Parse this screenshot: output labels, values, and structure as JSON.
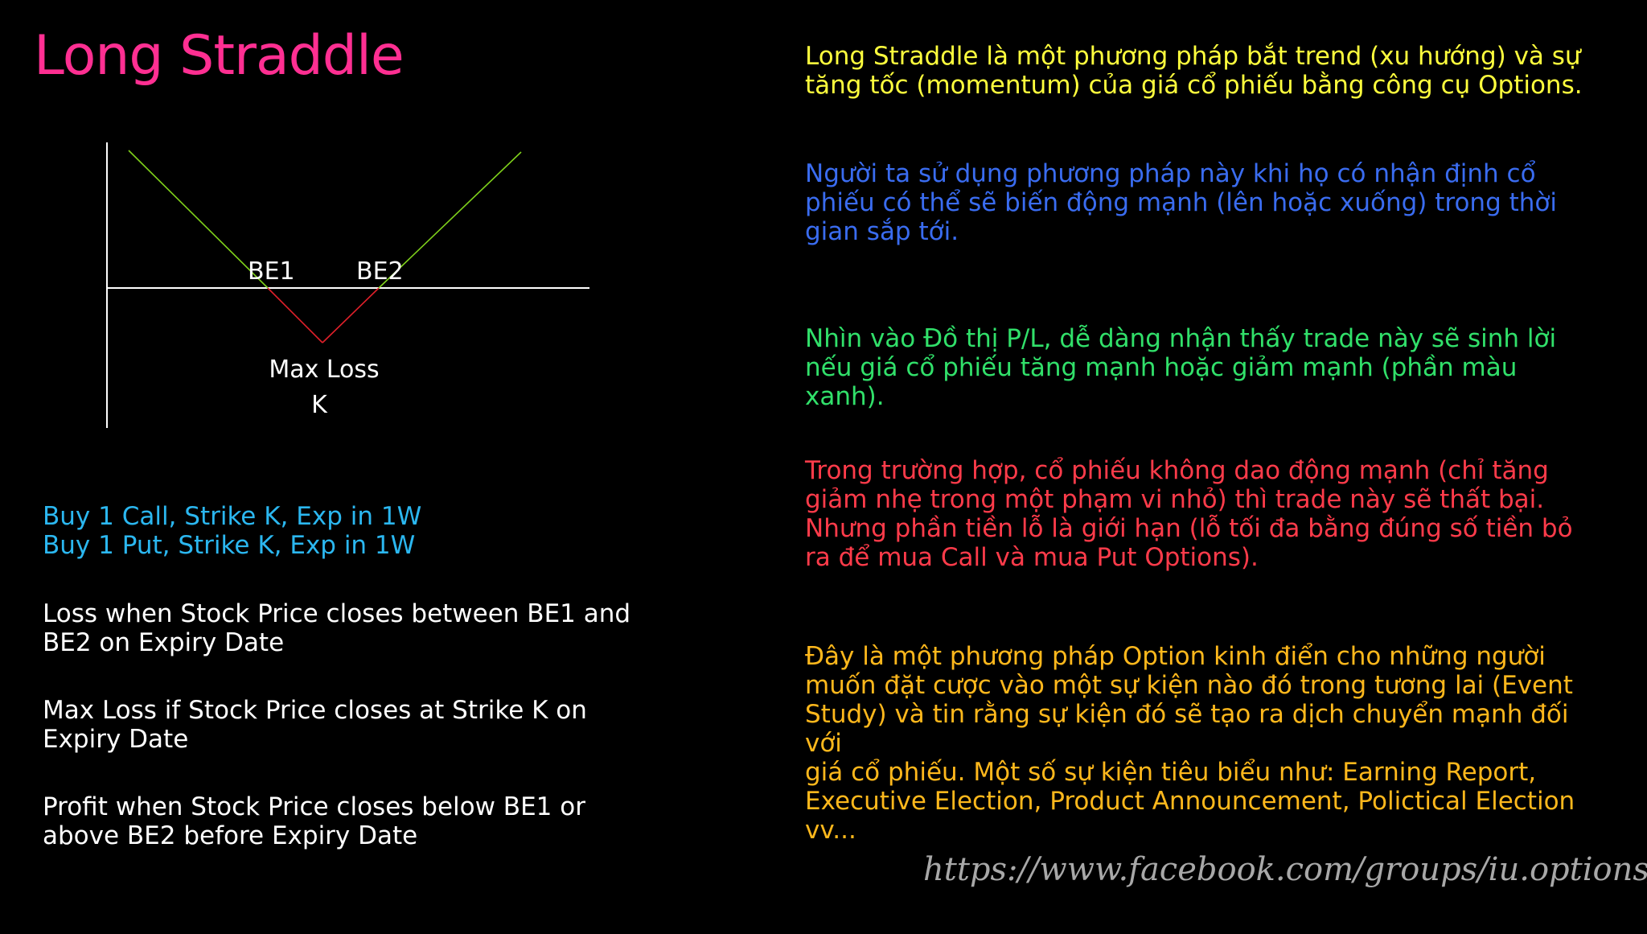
{
  "title": "Long Straddle",
  "colors": {
    "title": "#ff2f92",
    "profit_line": "#7fd11b",
    "loss_line": "#e0202a",
    "axis": "#ffffff",
    "left_blue": "#2bb7f0",
    "para1": "#ffff3d",
    "para2": "#3a6cf0",
    "para3": "#31e06a",
    "para4": "#ff3b4a",
    "para5": "#ffb81c",
    "footer": "#a8a8a8"
  },
  "diagram": {
    "be1": "BE1",
    "be2": "BE2",
    "max_loss": "Max Loss",
    "k": "K"
  },
  "left": {
    "buy_call": "Buy 1 Call, Strike K, Exp in 1W",
    "buy_put": "Buy 1 Put, Strike K, Exp in 1W",
    "loss_line1": "Loss when Stock Price closes between BE1 and",
    "loss_line2": "BE2 on Expiry Date",
    "maxloss_line1": "Max Loss if Stock Price closes at Strike K on",
    "maxloss_line2": "Expiry Date",
    "profit_line1": "Profit when Stock Price closes below BE1 or",
    "profit_line2": "above BE2 before Expiry Date"
  },
  "right": {
    "p1": [
      "Long Straddle là một phương pháp bắt trend (xu hướng)  và sự",
      "tăng tốc (momentum) của giá cổ phiếu bằng công cụ Options."
    ],
    "p2": [
      "Người ta sử dụng phương pháp này khi họ có nhận định cổ",
      "phiếu có thể sẽ biến động mạnh (lên hoặc xuống) trong thời",
      "gian sắp tới."
    ],
    "p3": [
      "Nhìn vào Đồ thị P/L, dễ dàng nhận thấy trade này sẽ sinh lời",
      "nếu giá cổ phiếu tăng mạnh hoặc giảm mạnh (phần màu xanh)."
    ],
    "p4": [
      "Trong trường hợp, cổ phiếu không dao động mạnh (chỉ tăng",
      "giảm nhẹ trong một phạm vi nhỏ) thì trade này sẽ thất bại.",
      "Nhưng phần tiền lỗ là giới hạn (lỗ tối đa bằng đúng số tiền bỏ",
      "ra để mua Call và mua Put Options)."
    ],
    "p5": [
      "Đây là một phương pháp Option kinh điển cho những người",
      "muốn đặt cược vào một sự kiện nào đó trong tương lai (Event",
      "Study) và tin rằng sự kiện đó sẽ tạo ra dịch chuyển mạnh đối với",
      "giá cổ phiếu. Một số sự kiện tiêu biểu như: Earning Report,",
      "Executive Election, Product Announcement, Polictical Election",
      "vv..."
    ]
  },
  "footer_url": "https://www.facebook.com/groups/iu.options/"
}
